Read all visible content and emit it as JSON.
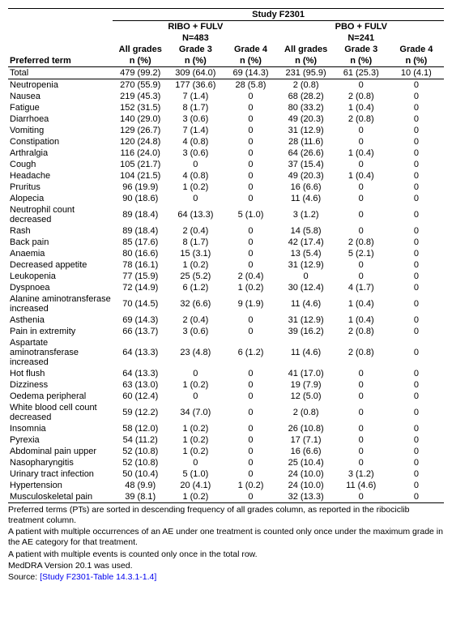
{
  "title": "Study F2301",
  "arms": [
    {
      "name": "RIBO + FULV",
      "n": "N=483"
    },
    {
      "name": "PBO + FULV",
      "n": "N=241"
    }
  ],
  "grade_labels": [
    "All grades",
    "Grade 3",
    "Grade 4"
  ],
  "unit": "n (%)",
  "pt_label": "Preferred term",
  "total_label": "Total",
  "total": [
    "479 (99.2)",
    "309 (64.0)",
    "69 (14.3)",
    "231 (95.9)",
    "61 (25.3)",
    "10 (4.1)"
  ],
  "rows": [
    {
      "pt": "Neutropenia",
      "v": [
        "270 (55.9)",
        "177 (36.6)",
        "28 (5.8)",
        "2 (0.8)",
        "0",
        "0"
      ]
    },
    {
      "pt": "Nausea",
      "v": [
        "219 (45.3)",
        "7 (1.4)",
        "0",
        "68 (28.2)",
        "2 (0.8)",
        "0"
      ]
    },
    {
      "pt": "Fatigue",
      "v": [
        "152 (31.5)",
        "8 (1.7)",
        "0",
        "80 (33.2)",
        "1 (0.4)",
        "0"
      ]
    },
    {
      "pt": "Diarrhoea",
      "v": [
        "140 (29.0)",
        "3 (0.6)",
        "0",
        "49 (20.3)",
        "2 (0.8)",
        "0"
      ]
    },
    {
      "pt": "Vomiting",
      "v": [
        "129 (26.7)",
        "7 (1.4)",
        "0",
        "31 (12.9)",
        "0",
        "0"
      ]
    },
    {
      "pt": "Constipation",
      "v": [
        "120 (24.8)",
        "4 (0.8)",
        "0",
        "28 (11.6)",
        "0",
        "0"
      ]
    },
    {
      "pt": "Arthralgia",
      "v": [
        "116 (24.0)",
        "3 (0.6)",
        "0",
        "64 (26.6)",
        "1 (0.4)",
        "0"
      ]
    },
    {
      "pt": "Cough",
      "v": [
        "105 (21.7)",
        "0",
        "0",
        "37 (15.4)",
        "0",
        "0"
      ]
    },
    {
      "pt": "Headache",
      "v": [
        "104 (21.5)",
        "4 (0.8)",
        "0",
        "49 (20.3)",
        "1 (0.4)",
        "0"
      ]
    },
    {
      "pt": "Pruritus",
      "v": [
        "96 (19.9)",
        "1 (0.2)",
        "0",
        "16 (6.6)",
        "0",
        "0"
      ]
    },
    {
      "pt": "Alopecia",
      "v": [
        "90 (18.6)",
        "0",
        "0",
        "11 (4.6)",
        "0",
        "0"
      ]
    },
    {
      "pt": "Neutrophil count decreased",
      "v": [
        "89 (18.4)",
        "64 (13.3)",
        "5 (1.0)",
        "3 (1.2)",
        "0",
        "0"
      ]
    },
    {
      "pt": "Rash",
      "v": [
        "89 (18.4)",
        "2 (0.4)",
        "0",
        "14 (5.8)",
        "0",
        "0"
      ]
    },
    {
      "pt": "Back pain",
      "v": [
        "85 (17.6)",
        "8 (1.7)",
        "0",
        "42 (17.4)",
        "2 (0.8)",
        "0"
      ]
    },
    {
      "pt": "Anaemia",
      "v": [
        "80 (16.6)",
        "15 (3.1)",
        "0",
        "13 (5.4)",
        "5 (2.1)",
        "0"
      ]
    },
    {
      "pt": "Decreased appetite",
      "v": [
        "78 (16.1)",
        "1 (0.2)",
        "0",
        "31 (12.9)",
        "0",
        "0"
      ]
    },
    {
      "pt": "Leukopenia",
      "v": [
        "77 (15.9)",
        "25 (5.2)",
        "2 (0.4)",
        "0",
        "0",
        "0"
      ]
    },
    {
      "pt": "Dyspnoea",
      "v": [
        "72 (14.9)",
        "6 (1.2)",
        "1 (0.2)",
        "30 (12.4)",
        "4 (1.7)",
        "0"
      ]
    },
    {
      "pt": "Alanine aminotransferase increased",
      "v": [
        "70 (14.5)",
        "32 (6.6)",
        "9 (1.9)",
        "11 (4.6)",
        "1 (0.4)",
        "0"
      ]
    },
    {
      "pt": "Asthenia",
      "v": [
        "69 (14.3)",
        "2 (0.4)",
        "0",
        "31 (12.9)",
        "1 (0.4)",
        "0"
      ]
    },
    {
      "pt": "Pain in extremity",
      "v": [
        "66 (13.7)",
        "3 (0.6)",
        "0",
        "39 (16.2)",
        "2 (0.8)",
        "0"
      ]
    },
    {
      "pt": "Aspartate aminotransferase increased",
      "v": [
        "64 (13.3)",
        "23 (4.8)",
        "6 (1.2)",
        "11 (4.6)",
        "2 (0.8)",
        "0"
      ]
    },
    {
      "pt": "Hot flush",
      "v": [
        "64 (13.3)",
        "0",
        "0",
        "41 (17.0)",
        "0",
        "0"
      ]
    },
    {
      "pt": "Dizziness",
      "v": [
        "63 (13.0)",
        "1 (0.2)",
        "0",
        "19 (7.9)",
        "0",
        "0"
      ]
    },
    {
      "pt": "Oedema peripheral",
      "v": [
        "60 (12.4)",
        "0",
        "0",
        "12 (5.0)",
        "0",
        "0"
      ]
    },
    {
      "pt": "White blood cell count decreased",
      "v": [
        "59 (12.2)",
        "34 (7.0)",
        "0",
        "2 (0.8)",
        "0",
        "0"
      ]
    },
    {
      "pt": "Insomnia",
      "v": [
        "58 (12.0)",
        "1 (0.2)",
        "0",
        "26 (10.8)",
        "0",
        "0"
      ]
    },
    {
      "pt": "Pyrexia",
      "v": [
        "54 (11.2)",
        "1 (0.2)",
        "0",
        "17 (7.1)",
        "0",
        "0"
      ]
    },
    {
      "pt": "Abdominal pain upper",
      "v": [
        "52 (10.8)",
        "1 (0.2)",
        "0",
        "16 (6.6)",
        "0",
        "0"
      ]
    },
    {
      "pt": "Nasopharyngitis",
      "v": [
        "52 (10.8)",
        "0",
        "0",
        "25 (10.4)",
        "0",
        "0"
      ]
    },
    {
      "pt": "Urinary tract infection",
      "v": [
        "50 (10.4)",
        "5 (1.0)",
        "0",
        "24 (10.0)",
        "3 (1.2)",
        "0"
      ]
    },
    {
      "pt": "Hypertension",
      "v": [
        "48 (9.9)",
        "20 (4.1)",
        "1 (0.2)",
        "24 (10.0)",
        "11 (4.6)",
        "0"
      ]
    },
    {
      "pt": "Musculoskeletal pain",
      "v": [
        "39 (8.1)",
        "1 (0.2)",
        "0",
        "32 (13.3)",
        "0",
        "0"
      ]
    }
  ],
  "footnotes": [
    "Preferred terms (PTs) are sorted in descending frequency of all grades column, as reported in the ribociclib treatment column.",
    "A patient with multiple occurrences of an AE under one treatment is counted only once under the maximum grade in the AE category for that treatment.",
    "A patient with multiple events is counted only once in the total row.",
    "MedDRA Version 20.1 was used."
  ],
  "source_label": "Source: ",
  "source_link": "[Study F2301-Table 14.3.1-1.4]"
}
